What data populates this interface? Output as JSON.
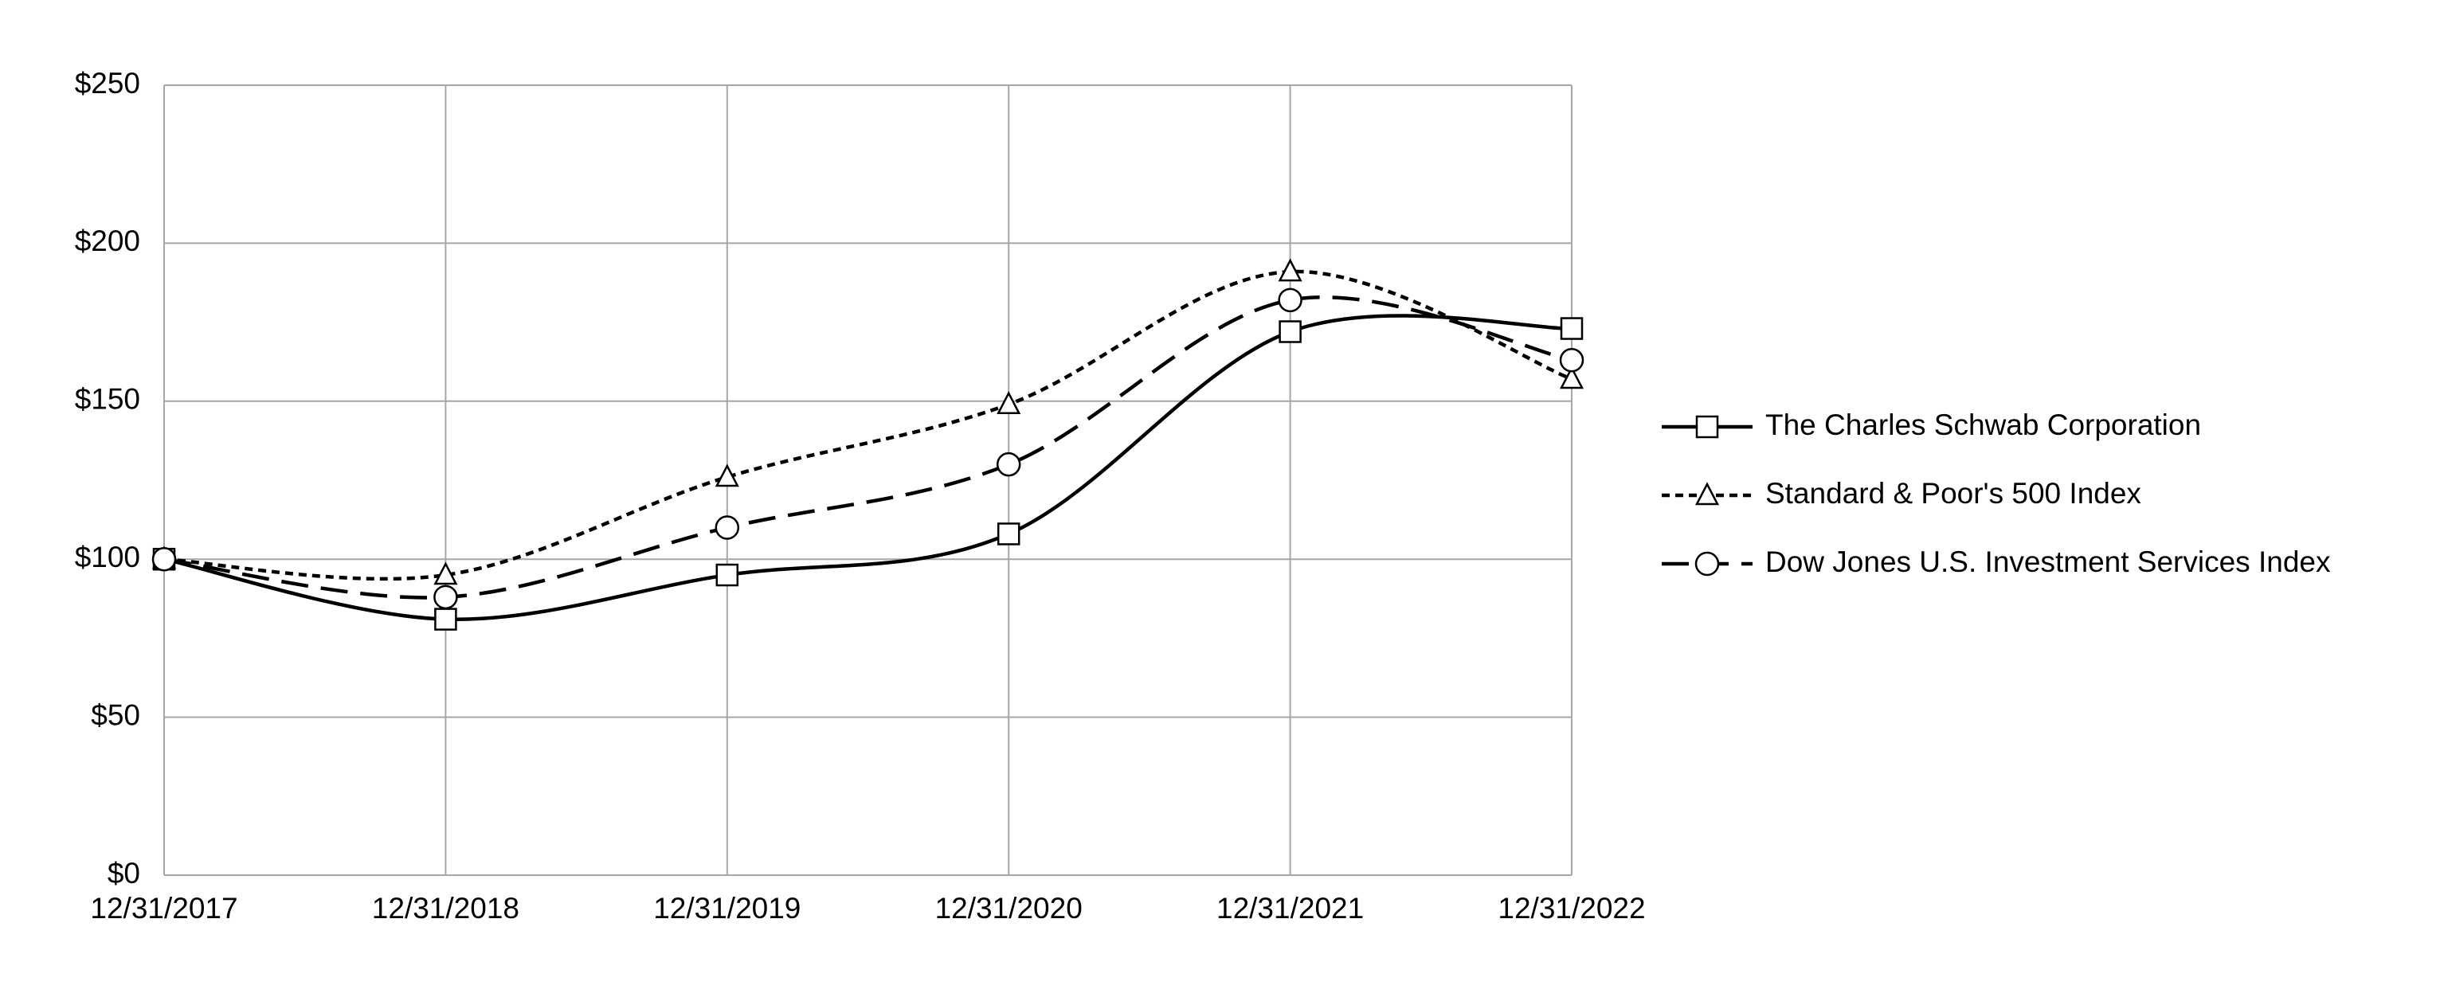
{
  "chart_data": {
    "type": "line",
    "categories": [
      "12/31/2017",
      "12/31/2018",
      "12/31/2019",
      "12/31/2020",
      "12/31/2021",
      "12/31/2022"
    ],
    "series": [
      {
        "name": "The Charles Schwab Corporation",
        "color": "#000000",
        "line_style": "solid",
        "marker": "square",
        "values": [
          100,
          81,
          95,
          108,
          172,
          173
        ]
      },
      {
        "name": "Standard & Poor's 500 Index",
        "color": "#000000",
        "line_style": "dotted",
        "marker": "triangle",
        "values": [
          100,
          95,
          126,
          149,
          191,
          157
        ]
      },
      {
        "name": "Dow Jones U.S. Investment Services Index",
        "color": "#000000",
        "line_style": "dashed",
        "marker": "circle",
        "values": [
          100,
          88,
          110,
          130,
          182,
          163
        ]
      }
    ],
    "ylim": [
      0,
      250
    ],
    "yticks": [
      {
        "value": 0,
        "label": "$0"
      },
      {
        "value": 50,
        "label": "$50"
      },
      {
        "value": 100,
        "label": "$100"
      },
      {
        "value": 150,
        "label": "$150"
      },
      {
        "value": 200,
        "label": "$200"
      },
      {
        "value": 250,
        "label": "$250"
      }
    ],
    "grid": true,
    "smooth": true,
    "legend": "right"
  }
}
